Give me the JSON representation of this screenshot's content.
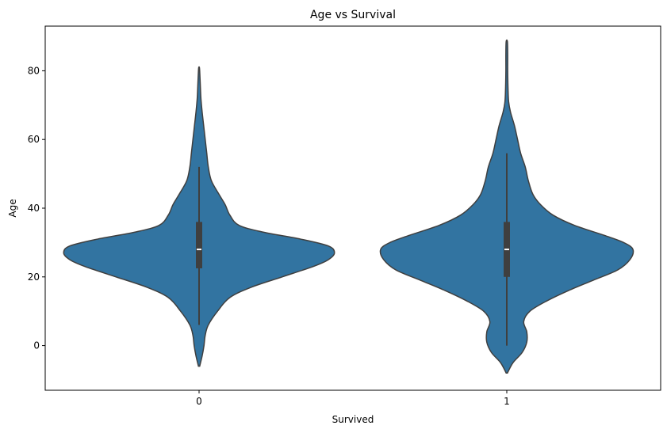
{
  "chart_data": {
    "type": "violin",
    "title": "Age vs Survival",
    "xlabel": "Survived",
    "ylabel": "Age",
    "categories": [
      "0",
      "1"
    ],
    "ylim": [
      -13,
      93
    ],
    "yticks": [
      0,
      20,
      40,
      60,
      80
    ],
    "grid": false,
    "color": "#3274a1",
    "edge_color": "#3f3f3f",
    "violins": [
      {
        "category": "0",
        "profile": [
          {
            "y": -6,
            "w": 0.002
          },
          {
            "y": -3,
            "w": 0.01
          },
          {
            "y": 0,
            "w": 0.016
          },
          {
            "y": 3,
            "w": 0.02
          },
          {
            "y": 6,
            "w": 0.03
          },
          {
            "y": 10,
            "w": 0.06
          },
          {
            "y": 14,
            "w": 0.1
          },
          {
            "y": 17,
            "w": 0.17
          },
          {
            "y": 20,
            "w": 0.27
          },
          {
            "y": 23,
            "w": 0.37
          },
          {
            "y": 25,
            "w": 0.42
          },
          {
            "y": 27,
            "w": 0.44
          },
          {
            "y": 29,
            "w": 0.42
          },
          {
            "y": 31,
            "w": 0.33
          },
          {
            "y": 33,
            "w": 0.21
          },
          {
            "y": 35,
            "w": 0.13
          },
          {
            "y": 38,
            "w": 0.1
          },
          {
            "y": 41,
            "w": 0.085
          },
          {
            "y": 44,
            "w": 0.065
          },
          {
            "y": 48,
            "w": 0.04
          },
          {
            "y": 52,
            "w": 0.03
          },
          {
            "y": 56,
            "w": 0.025
          },
          {
            "y": 60,
            "w": 0.02
          },
          {
            "y": 64,
            "w": 0.015
          },
          {
            "y": 68,
            "w": 0.01
          },
          {
            "y": 72,
            "w": 0.006
          },
          {
            "y": 76,
            "w": 0.004
          },
          {
            "y": 80,
            "w": 0.002
          },
          {
            "y": 81,
            "w": 0.001
          }
        ],
        "whisker_low": 6,
        "q1": 22.5,
        "median": 28,
        "q3": 36,
        "whisker_high": 52
      },
      {
        "category": "1",
        "profile": [
          {
            "y": -8,
            "w": 0.002
          },
          {
            "y": -5,
            "w": 0.02
          },
          {
            "y": -2,
            "w": 0.05
          },
          {
            "y": 1,
            "w": 0.065
          },
          {
            "y": 4,
            "w": 0.065
          },
          {
            "y": 7,
            "w": 0.055
          },
          {
            "y": 10,
            "w": 0.075
          },
          {
            "y": 13,
            "w": 0.13
          },
          {
            "y": 16,
            "w": 0.2
          },
          {
            "y": 19,
            "w": 0.28
          },
          {
            "y": 22,
            "w": 0.36
          },
          {
            "y": 25,
            "w": 0.4
          },
          {
            "y": 28,
            "w": 0.41
          },
          {
            "y": 30,
            "w": 0.38
          },
          {
            "y": 32,
            "w": 0.32
          },
          {
            "y": 35,
            "w": 0.22
          },
          {
            "y": 38,
            "w": 0.15
          },
          {
            "y": 41,
            "w": 0.11
          },
          {
            "y": 44,
            "w": 0.085
          },
          {
            "y": 48,
            "w": 0.07
          },
          {
            "y": 52,
            "w": 0.06
          },
          {
            "y": 56,
            "w": 0.045
          },
          {
            "y": 60,
            "w": 0.035
          },
          {
            "y": 64,
            "w": 0.025
          },
          {
            "y": 68,
            "w": 0.012
          },
          {
            "y": 71,
            "w": 0.006
          },
          {
            "y": 75,
            "w": 0.004
          },
          {
            "y": 80,
            "w": 0.003
          },
          {
            "y": 85,
            "w": 0.003
          },
          {
            "y": 88.5,
            "w": 0.002
          }
        ],
        "whisker_low": 0,
        "q1": 20,
        "median": 28,
        "q3": 36,
        "whisker_high": 56
      }
    ]
  }
}
